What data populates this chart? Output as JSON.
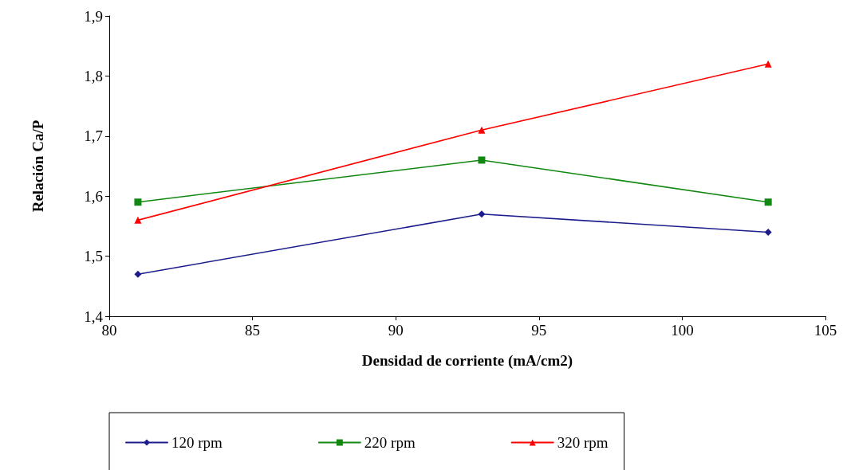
{
  "chart_data": {
    "type": "line",
    "xlabel": "Densidad de corriente (mA/cm2)",
    "ylabel": "Relación Ca/P",
    "x": [
      81,
      93,
      103
    ],
    "series": [
      {
        "name": "120 rpm",
        "color": "#1c1c8c",
        "marker": "diamond",
        "values": [
          1.47,
          1.57,
          1.54
        ]
      },
      {
        "name": "220 rpm",
        "color": "#118811",
        "marker": "square",
        "values": [
          1.59,
          1.66,
          1.59
        ]
      },
      {
        "name": "320 rpm",
        "color": "#ff0000",
        "marker": "triangle",
        "values": [
          1.56,
          1.71,
          1.82
        ]
      }
    ],
    "xlim": [
      80,
      105
    ],
    "xticks": [
      80,
      85,
      90,
      95,
      100,
      105
    ],
    "ylim": [
      1.4,
      1.9
    ],
    "yticks": [
      {
        "value": 1.4,
        "label": "1,4"
      },
      {
        "value": 1.5,
        "label": "1,5"
      },
      {
        "value": 1.6,
        "label": "1,6"
      },
      {
        "value": 1.7,
        "label": "1,7"
      },
      {
        "value": 1.8,
        "label": "1,8"
      },
      {
        "value": 1.9,
        "label": "1,9"
      }
    ],
    "grid": false,
    "legend": "bottom",
    "line_style": "solid"
  }
}
